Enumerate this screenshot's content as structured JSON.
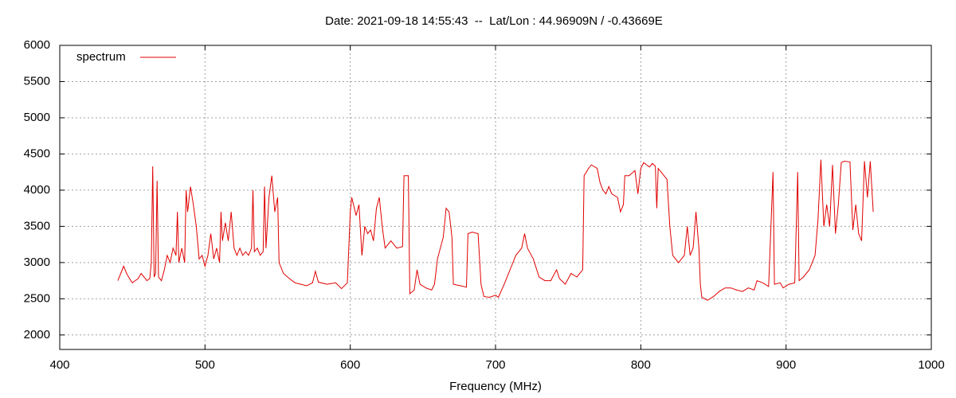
{
  "chart_data": {
    "type": "line",
    "title": "Date: 2021-09-18 14:55:43  --  Lat/Lon : 44.96909N / -0.43669E",
    "x_label": "Frequency (MHz)",
    "xlim": [
      400,
      1000
    ],
    "xticks": [
      400,
      500,
      600,
      700,
      800,
      900,
      1000
    ],
    "ylim": [
      1800,
      6000
    ],
    "yticks": [
      2000,
      2500,
      3000,
      3500,
      4000,
      4500,
      5000,
      5500,
      6000
    ],
    "grid": true,
    "legend": "top-left",
    "series": [
      {
        "name": "spectrum",
        "color": "#e00000",
        "x": [
          440,
          442,
          444,
          446,
          448,
          450,
          452,
          454,
          456,
          458,
          460,
          462,
          463,
          464,
          465,
          466,
          467,
          468,
          470,
          472,
          474,
          476,
          478,
          480,
          481,
          482,
          484,
          486,
          487,
          488,
          490,
          492,
          494,
          496,
          498,
          500,
          502,
          504,
          506,
          508,
          510,
          511,
          512,
          514,
          516,
          518,
          520,
          522,
          524,
          526,
          528,
          530,
          532,
          533,
          534,
          536,
          538,
          540,
          541,
          542,
          544,
          546,
          548,
          550,
          551,
          554,
          558,
          562,
          566,
          570,
          574,
          576,
          578,
          584,
          590,
          594,
          598,
          600,
          601,
          604,
          606,
          608,
          610,
          612,
          614,
          616,
          618,
          620,
          622,
          624,
          628,
          632,
          636,
          637,
          640,
          641,
          644,
          646,
          648,
          652,
          656,
          658,
          660,
          664,
          666,
          668,
          670,
          671,
          676,
          680,
          681,
          684,
          688,
          690,
          692,
          696,
          700,
          702,
          706,
          710,
          714,
          718,
          720,
          722,
          726,
          730,
          734,
          738,
          742,
          744,
          748,
          752,
          756,
          760,
          761,
          764,
          766,
          770,
          772,
          774,
          776,
          778,
          780,
          784,
          786,
          788,
          789,
          792,
          796,
          798,
          800,
          802,
          804,
          806,
          808,
          810,
          811,
          812,
          816,
          818,
          820,
          822,
          826,
          830,
          832,
          834,
          836,
          838,
          840,
          841,
          842,
          846,
          850,
          854,
          858,
          862,
          866,
          870,
          874,
          878,
          880,
          884,
          888,
          891,
          892,
          896,
          898,
          902,
          906,
          908,
          909,
          912,
          916,
          920,
          922,
          924,
          926,
          928,
          930,
          932,
          934,
          936,
          938,
          940,
          944,
          946,
          948,
          950,
          952,
          954,
          956,
          958,
          960
        ],
        "values": [
          2750,
          2850,
          2950,
          2850,
          2780,
          2720,
          2750,
          2780,
          2850,
          2800,
          2750,
          2780,
          3000,
          4330,
          2800,
          2850,
          4130,
          2800,
          2750,
          2900,
          3100,
          3000,
          3200,
          3100,
          3700,
          3000,
          3200,
          3000,
          4000,
          3700,
          4050,
          3800,
          3500,
          3050,
          3100,
          2950,
          3100,
          3400,
          3050,
          3200,
          3000,
          3700,
          3300,
          3550,
          3300,
          3700,
          3200,
          3100,
          3200,
          3100,
          3150,
          3100,
          3200,
          4000,
          3150,
          3200,
          3100,
          3150,
          4050,
          3200,
          3900,
          4200,
          3700,
          3900,
          3000,
          2850,
          2780,
          2720,
          2700,
          2680,
          2720,
          2880,
          2730,
          2700,
          2720,
          2640,
          2720,
          3700,
          3900,
          3650,
          3800,
          3100,
          3500,
          3400,
          3450,
          3300,
          3750,
          3900,
          3500,
          3200,
          3300,
          3200,
          3220,
          4200,
          4200,
          2570,
          2620,
          2900,
          2700,
          2650,
          2620,
          2700,
          3050,
          3350,
          3750,
          3700,
          3350,
          2700,
          2680,
          2660,
          3400,
          3420,
          3400,
          2700,
          2530,
          2520,
          2550,
          2520,
          2700,
          2900,
          3100,
          3200,
          3400,
          3200,
          3050,
          2800,
          2750,
          2750,
          2900,
          2780,
          2700,
          2850,
          2800,
          2900,
          4200,
          4300,
          4350,
          4300,
          4100,
          4000,
          3950,
          4050,
          3950,
          3900,
          3700,
          3800,
          4200,
          4200,
          4270,
          3950,
          4300,
          4380,
          4350,
          4320,
          4370,
          4330,
          3750,
          4300,
          4200,
          4150,
          3500,
          3100,
          3000,
          3100,
          3500,
          3100,
          3200,
          3700,
          3200,
          2700,
          2520,
          2480,
          2530,
          2600,
          2650,
          2650,
          2620,
          2600,
          2650,
          2620,
          2750,
          2720,
          2670,
          4250,
          2700,
          2720,
          2650,
          2700,
          2720,
          4250,
          2750,
          2800,
          2900,
          3100,
          3600,
          4420,
          3500,
          3800,
          3500,
          4350,
          3400,
          3800,
          4380,
          4400,
          4390,
          3450,
          3800,
          3400,
          3300,
          4400,
          3900,
          4400,
          3700
        ]
      }
    ]
  }
}
